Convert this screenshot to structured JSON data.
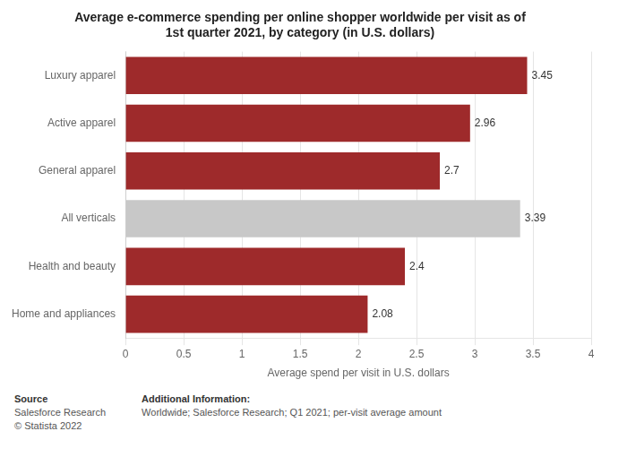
{
  "chart_data": {
    "type": "bar",
    "orientation": "horizontal",
    "title": "Average e-commerce spending per online shopper worldwide per visit as of\n1st quarter 2021, by category (in U.S. dollars)",
    "categories": [
      "Luxury apparel",
      "Active apparel",
      "General apparel",
      "All verticals",
      "Health and beauty",
      "Home and appliances"
    ],
    "values": [
      3.45,
      2.96,
      2.7,
      3.39,
      2.4,
      2.08
    ],
    "colors": [
      "#9e2a2b",
      "#9e2a2b",
      "#9e2a2b",
      "#c8c8c8",
      "#9e2a2b",
      "#9e2a2b"
    ],
    "xlabel": "Average spend per visit in U.S. dollars",
    "xlim": [
      0,
      4
    ],
    "xticks": [
      0,
      0.5,
      1,
      1.5,
      2,
      2.5,
      3,
      3.5,
      4
    ],
    "grid": true,
    "data_labels": true,
    "annotations": [
      [
        "Source",
        "Salesforce Research",
        "© Statista 2022"
      ],
      [
        "Additional Information:",
        "Worldwide; Salesforce Research; Q1 2021; per-visit average amount"
      ]
    ]
  }
}
